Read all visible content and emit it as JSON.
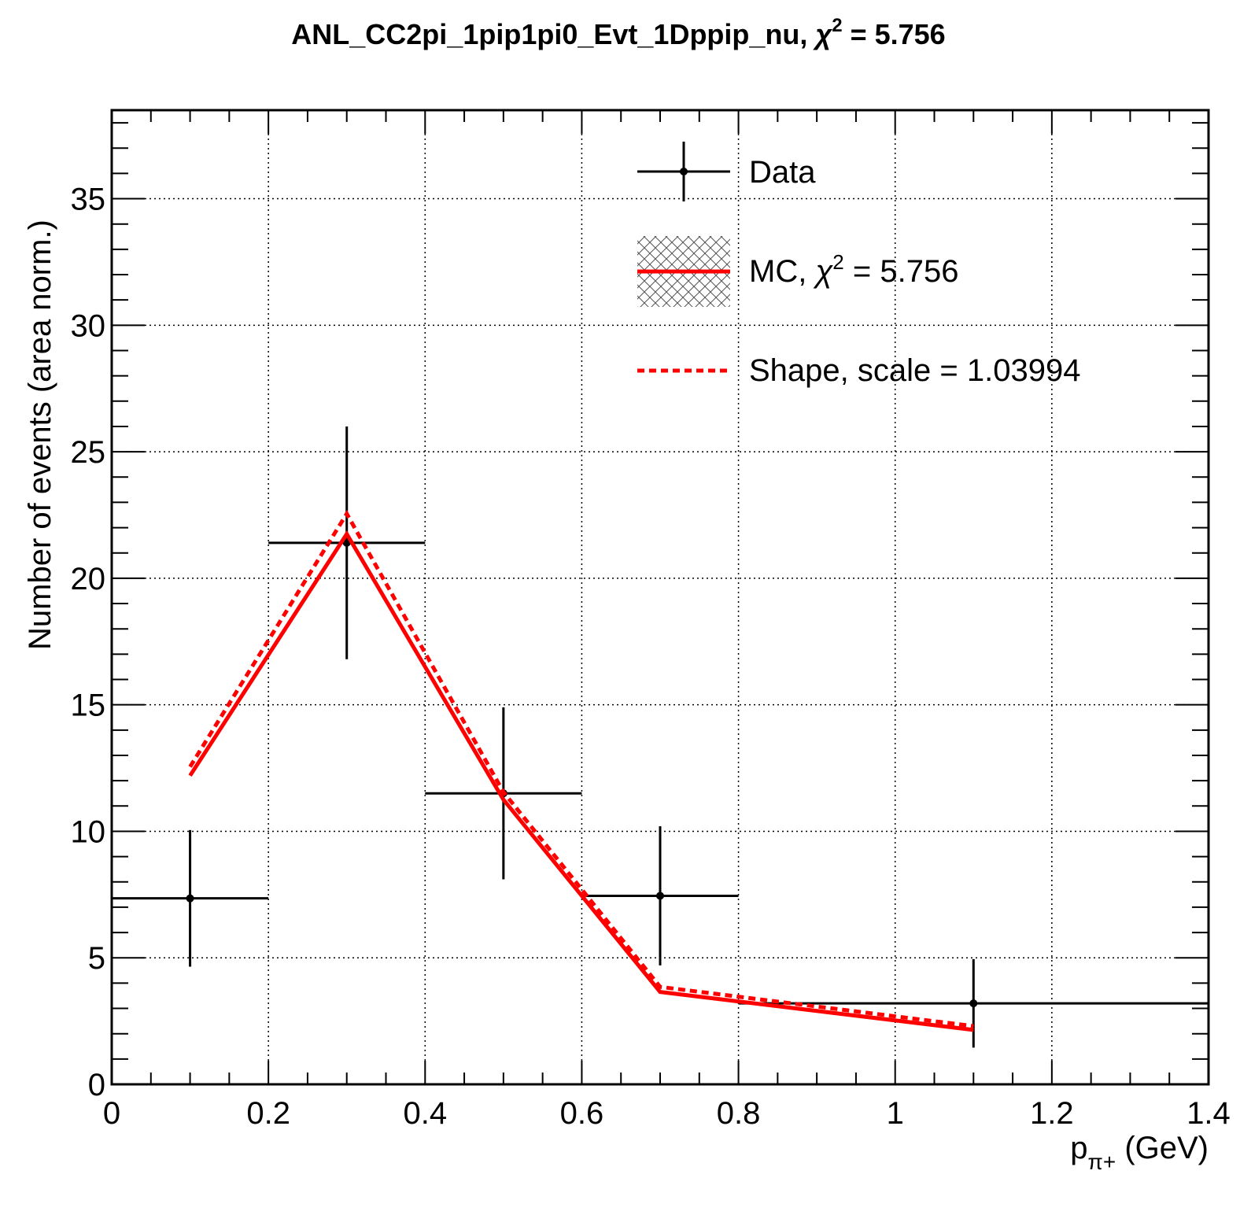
{
  "chart_data": {
    "type": "line",
    "title": {
      "main": "ANL_CC2pi_1pip1pi0_Evt_1Dppip_nu, ",
      "chi_symbol": "χ",
      "chi_sup": "2",
      "chi_value": " = 5.756"
    },
    "xlabel": {
      "main": "p",
      "sub": "π+",
      "unit": " (GeV)"
    },
    "ylabel": "Number of events (area norm.)",
    "xlim": [
      0,
      1.4
    ],
    "ylim": [
      0,
      38.5
    ],
    "x_ticks": [
      {
        "value": 0,
        "label": "0"
      },
      {
        "value": 0.2,
        "label": "0.2"
      },
      {
        "value": 0.4,
        "label": "0.4"
      },
      {
        "value": 0.6,
        "label": "0.6"
      },
      {
        "value": 0.8,
        "label": "0.8"
      },
      {
        "value": 1.0,
        "label": "1"
      },
      {
        "value": 1.2,
        "label": "1.2"
      },
      {
        "value": 1.4,
        "label": "1.4"
      }
    ],
    "y_ticks": [
      {
        "value": 0,
        "label": "0"
      },
      {
        "value": 5,
        "label": "5"
      },
      {
        "value": 10,
        "label": "10"
      },
      {
        "value": 15,
        "label": "15"
      },
      {
        "value": 20,
        "label": "20"
      },
      {
        "value": 25,
        "label": "25"
      },
      {
        "value": 30,
        "label": "30"
      },
      {
        "value": 35,
        "label": "35"
      }
    ],
    "grid": true,
    "legend_position": "top-right",
    "series": [
      {
        "name": "Data",
        "kind": "errorbar",
        "color": "#000000",
        "points": [
          {
            "x": 0.1,
            "xlow": 0.0,
            "xhigh": 0.2,
            "y": 7.35,
            "ylow": 4.65,
            "yhigh": 10.05
          },
          {
            "x": 0.3,
            "xlow": 0.2,
            "xhigh": 0.4,
            "y": 21.4,
            "ylow": 16.8,
            "yhigh": 26.0
          },
          {
            "x": 0.5,
            "xlow": 0.4,
            "xhigh": 0.6,
            "y": 11.5,
            "ylow": 8.1,
            "yhigh": 14.9
          },
          {
            "x": 0.7,
            "xlow": 0.6,
            "xhigh": 0.8,
            "y": 7.45,
            "ylow": 4.7,
            "yhigh": 10.2
          },
          {
            "x": 1.1,
            "xlow": 0.8,
            "xhigh": 1.4,
            "y": 3.2,
            "ylow": 1.45,
            "yhigh": 4.95
          }
        ]
      },
      {
        "name": "MC, ",
        "name_chi_symbol": "χ",
        "name_chi_sup": "2",
        "name_chi_value": " = 5.756",
        "kind": "line",
        "color": "#ff0000",
        "style": "solid",
        "band": "hatched",
        "points": [
          {
            "x": 0.1,
            "y": 12.2
          },
          {
            "x": 0.3,
            "y": 21.75
          },
          {
            "x": 0.5,
            "y": 11.25
          },
          {
            "x": 0.7,
            "y": 3.65
          },
          {
            "x": 1.1,
            "y": 2.15
          }
        ]
      },
      {
        "name": "Shape, scale = 1.03994",
        "kind": "line",
        "color": "#ff0000",
        "style": "dashed",
        "points": [
          {
            "x": 0.1,
            "y": 12.55
          },
          {
            "x": 0.3,
            "y": 22.55
          },
          {
            "x": 0.5,
            "y": 11.55
          },
          {
            "x": 0.7,
            "y": 3.85
          },
          {
            "x": 1.1,
            "y": 2.3
          }
        ]
      }
    ]
  }
}
